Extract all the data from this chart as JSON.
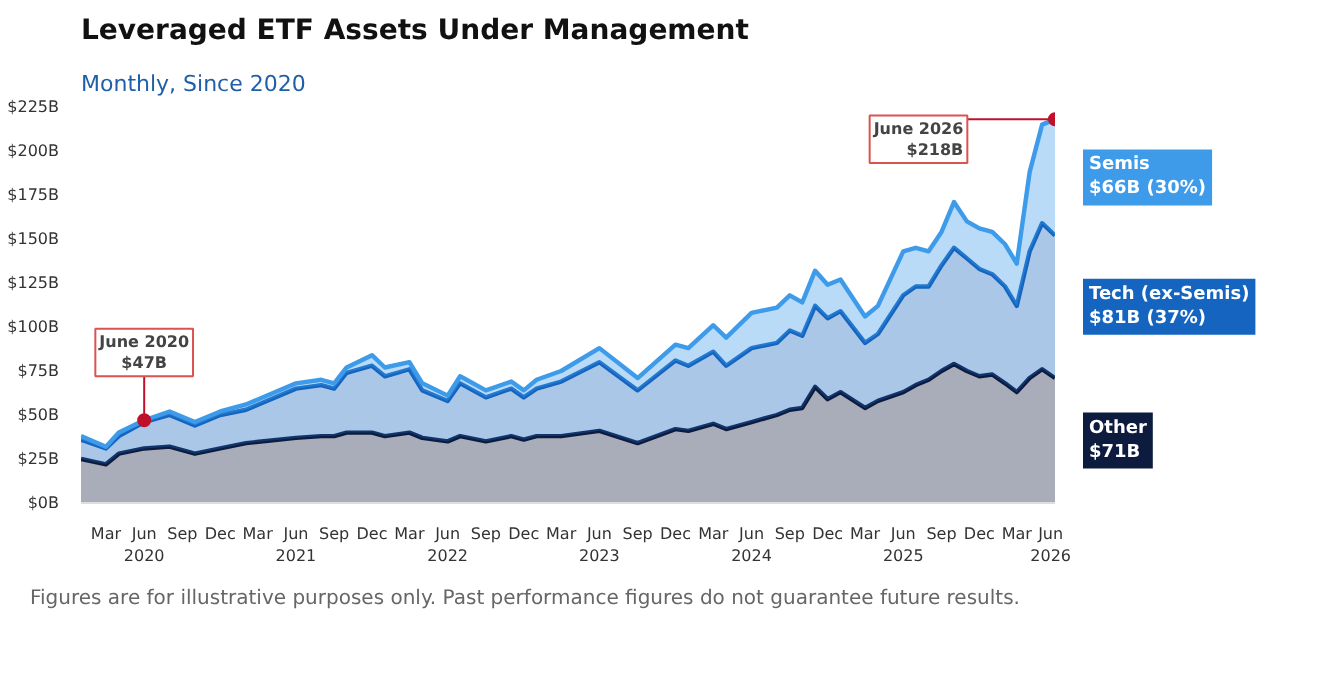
{
  "chart_data": {
    "type": "area",
    "stacked": true,
    "title": "Leveraged ETF Assets Under Management",
    "subtitle": "Monthly, Since 2020",
    "x": [
      "2020-01",
      "2020-03",
      "2020-04",
      "2020-06",
      "2020-08",
      "2020-10",
      "2020-12",
      "2021-02",
      "2021-06",
      "2021-08",
      "2021-09",
      "2021-10",
      "2021-12",
      "2022-01",
      "2022-03",
      "2022-04",
      "2022-06",
      "2022-07",
      "2022-09",
      "2022-11",
      "2022-12",
      "2023-01",
      "2023-03",
      "2023-06",
      "2023-09",
      "2023-12",
      "2024-01",
      "2024-03",
      "2024-04",
      "2024-06",
      "2024-08",
      "2024-09",
      "2024-10",
      "2024-11",
      "2024-12",
      "2025-01",
      "2025-03",
      "2025-04",
      "2025-06",
      "2025-07",
      "2025-08",
      "2025-09",
      "2025-10",
      "2025-11",
      "2025-12",
      "2026-01",
      "2026-02",
      "2026-03",
      "2026-04",
      "2026-05",
      "2026-06"
    ],
    "series": [
      {
        "name": "Other",
        "color": "#0d1b3e",
        "values": [
          25,
          22,
          28,
          31,
          32,
          28,
          31,
          34,
          37,
          38,
          38,
          40,
          40,
          38,
          40,
          37,
          35,
          38,
          35,
          38,
          36,
          38,
          38,
          41,
          34,
          42,
          41,
          45,
          42,
          46,
          50,
          53,
          54,
          66,
          59,
          63,
          54,
          58,
          63,
          67,
          70,
          75,
          79,
          75,
          72,
          73,
          68,
          63,
          71,
          76,
          71
        ]
      },
      {
        "name": "Tech (ex-Semis)",
        "color": "#1565c0",
        "values": [
          11,
          9,
          10,
          15,
          18,
          16,
          19,
          19,
          28,
          29,
          27,
          34,
          38,
          34,
          36,
          27,
          23,
          30,
          25,
          27,
          24,
          27,
          31,
          39,
          30,
          39,
          37,
          41,
          36,
          42,
          41,
          45,
          41,
          46,
          46,
          46,
          37,
          38,
          55,
          56,
          53,
          60,
          66,
          64,
          61,
          57,
          55,
          49,
          72,
          83,
          81
        ]
      },
      {
        "name": "Semis",
        "color": "#3d9be9",
        "values": [
          2,
          1,
          2,
          1,
          2,
          2,
          2,
          3,
          3,
          3,
          3,
          3,
          6,
          5,
          4,
          4,
          3,
          4,
          4,
          4,
          4,
          5,
          6,
          8,
          7,
          9,
          10,
          15,
          16,
          20,
          20,
          20,
          19,
          20,
          19,
          18,
          15,
          16,
          25,
          22,
          20,
          19,
          26,
          21,
          23,
          24,
          24,
          24,
          45,
          56,
          66
        ]
      }
    ],
    "ylim": [
      0,
      225
    ],
    "yticks": [
      {
        "value": 0,
        "label": "$0B"
      },
      {
        "value": 25,
        "label": "$25B"
      },
      {
        "value": 50,
        "label": "$50B"
      },
      {
        "value": 75,
        "label": "$75B"
      },
      {
        "value": 100,
        "label": "$100B"
      },
      {
        "value": 125,
        "label": "$125B"
      },
      {
        "value": 150,
        "label": "$150B"
      },
      {
        "value": 175,
        "label": "$175B"
      },
      {
        "value": 200,
        "label": "$200B"
      },
      {
        "value": 225,
        "label": "$225B"
      }
    ],
    "xlim": [
      "2020-01",
      "2026-06"
    ],
    "xticks": [
      {
        "value": "2020-03",
        "label": "Mar"
      },
      {
        "value": "2020-06",
        "label": "Jun\n2020"
      },
      {
        "value": "2020-09",
        "label": "Sep"
      },
      {
        "value": "2020-12",
        "label": "Dec"
      },
      {
        "value": "2021-03",
        "label": "Mar"
      },
      {
        "value": "2021-06",
        "label": "Jun\n2021"
      },
      {
        "value": "2021-09",
        "label": "Sep"
      },
      {
        "value": "2021-12",
        "label": "Dec"
      },
      {
        "value": "2022-03",
        "label": "Mar"
      },
      {
        "value": "2022-06",
        "label": "Jun\n2022"
      },
      {
        "value": "2022-09",
        "label": "Sep"
      },
      {
        "value": "2022-12",
        "label": "Dec"
      },
      {
        "value": "2023-03",
        "label": "Mar"
      },
      {
        "value": "2023-06",
        "label": "Jun\n2023"
      },
      {
        "value": "2023-09",
        "label": "Sep"
      },
      {
        "value": "2023-12",
        "label": "Dec"
      },
      {
        "value": "2024-03",
        "label": "Mar"
      },
      {
        "value": "2024-06",
        "label": "Jun\n2024"
      },
      {
        "value": "2024-09",
        "label": "Sep"
      },
      {
        "value": "2024-12",
        "label": "Dec"
      },
      {
        "value": "2025-03",
        "label": "Mar"
      },
      {
        "value": "2025-06",
        "label": "Jun\n2025"
      },
      {
        "value": "2025-09",
        "label": "Sep"
      },
      {
        "value": "2025-12",
        "label": "Dec"
      },
      {
        "value": "2026-03",
        "label": "Mar"
      },
      {
        "value": "2026-06",
        "label": "Jun\n2026"
      }
    ],
    "grid": false,
    "annotations": [
      {
        "text": "$71B",
        "x": "2026-06",
        "y": 35.5
      },
      {
        "text": "$81B (37%)",
        "x": "2026-06",
        "y": 111.5
      },
      {
        "text": "$66B (30%)",
        "x": "2026-06",
        "y": 185
      },
      {
        "text": "June 2020\n$47B",
        "x": "2020-06",
        "y": 47
      },
      {
        "text": "June 2026\n$218B",
        "x": "2026-06",
        "y": 218
      },
      "Figures are for illustrative purposes only. Past performance figures do not guarantee future results."
    ]
  }
}
